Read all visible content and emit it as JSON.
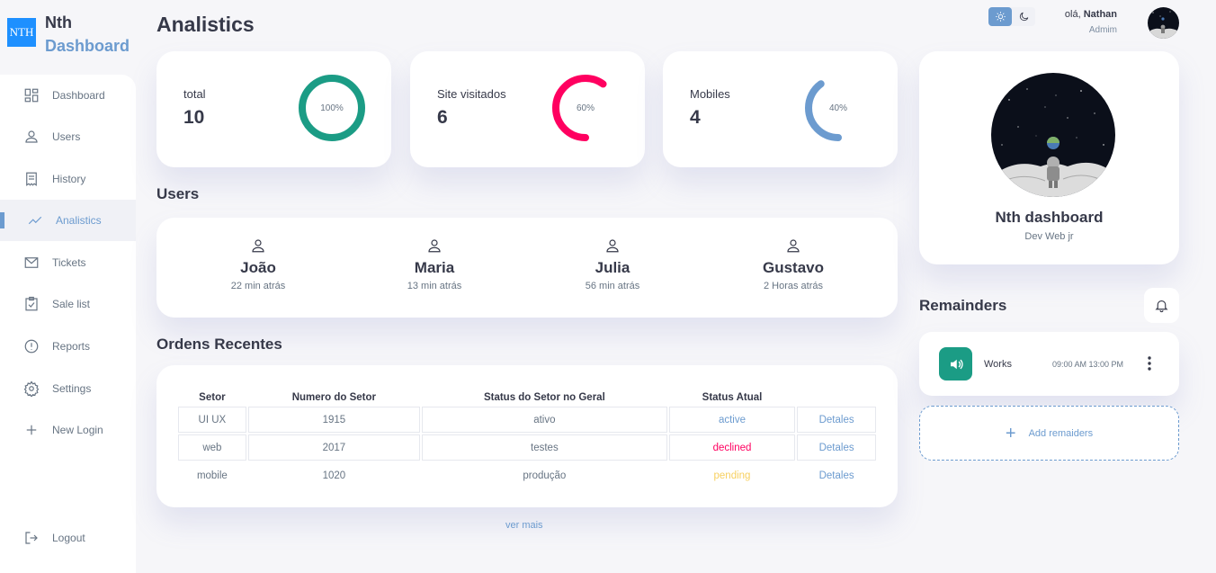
{
  "brand": {
    "logo_text": "NTH",
    "name_line1": "Nth",
    "name_line2": "Dashboard"
  },
  "sidebar": {
    "items": [
      {
        "label": "Dashboard",
        "icon": "grid-icon"
      },
      {
        "label": "Users",
        "icon": "person-icon"
      },
      {
        "label": "History",
        "icon": "receipt-icon"
      },
      {
        "label": "Analistics",
        "icon": "insights-icon",
        "active": true
      },
      {
        "label": "Tickets",
        "icon": "mail-icon"
      },
      {
        "label": "Sale list",
        "icon": "inventory-icon"
      },
      {
        "label": "Reports",
        "icon": "report-icon"
      },
      {
        "label": "Settings",
        "icon": "settings-icon"
      },
      {
        "label": "New Login",
        "icon": "add-icon"
      }
    ],
    "logout_label": "Logout"
  },
  "page": {
    "title": "Analistics"
  },
  "stats": [
    {
      "label": "total",
      "value": "10",
      "percent_label": "100%",
      "percent": 1.0,
      "color": "#1b9c85"
    },
    {
      "label": "Site visitados",
      "value": "6",
      "percent_label": "60%",
      "percent": 0.6,
      "color": "#ff0060"
    },
    {
      "label": "Mobiles",
      "value": "4",
      "percent_label": "40%",
      "percent": 0.4,
      "color": "#6c9bcf"
    }
  ],
  "users_section": {
    "title": "Users",
    "users": [
      {
        "name": "João",
        "time": "22 min atrás"
      },
      {
        "name": "Maria",
        "time": "13 min atrás"
      },
      {
        "name": "Julia",
        "time": "56 min atrás"
      },
      {
        "name": "Gustavo",
        "time": "2 Horas atrás"
      }
    ]
  },
  "orders": {
    "title": "Ordens Recentes",
    "columns": [
      "Setor",
      "Numero do Setor",
      "Status do Setor no Geral",
      "Status Atual",
      ""
    ],
    "rows": [
      {
        "setor": "UI UX",
        "numero": "1915",
        "status_geral": "ativo",
        "status_atual": "active",
        "details": "Detales"
      },
      {
        "setor": "web",
        "numero": "2017",
        "status_geral": "testes",
        "status_atual": "declined",
        "details": "Detales"
      },
      {
        "setor": "mobile",
        "numero": "1020",
        "status_geral": "produção",
        "status_atual": "pending",
        "details": "Detales"
      }
    ],
    "see_more": "ver mais"
  },
  "header": {
    "greeting": "olá,",
    "user_name": "Nathan",
    "role": "Admim"
  },
  "profile": {
    "name": "Nth dashboard",
    "role": "Dev Web jr"
  },
  "reminders": {
    "title": "Remainders",
    "items": [
      {
        "title": "Works",
        "time": "09:00 AM 13:00 PM",
        "icon": "volume-icon"
      }
    ],
    "add_label": "Add remaiders"
  }
}
